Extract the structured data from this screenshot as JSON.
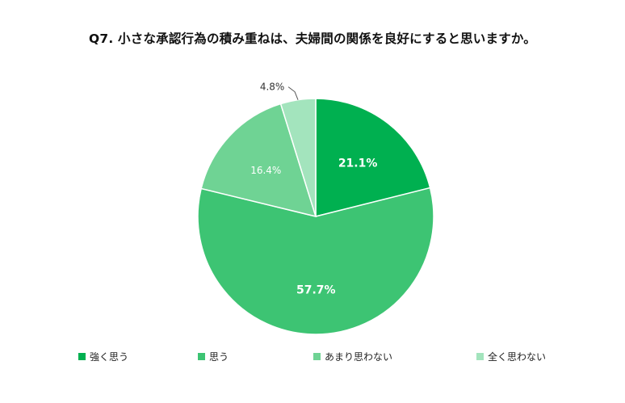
{
  "chart_data": {
    "type": "pie",
    "title": "Q7. 小さな承認行為の積み重ねは、夫婦間の関係を良好にすると思いますか。",
    "categories": [
      "強く思う",
      "思う",
      "あまり思わない",
      "全く思わない"
    ],
    "values": [
      21.1,
      57.7,
      16.4,
      4.8
    ],
    "labels": [
      "21.1%",
      "57.7%",
      "16.4%",
      "4.8%"
    ],
    "colors": [
      "#00b050",
      "#3dc473",
      "#6fd394",
      "#a3e4bd"
    ],
    "legend_position": "bottom",
    "start_angle_deg": 0,
    "direction": "clockwise"
  }
}
